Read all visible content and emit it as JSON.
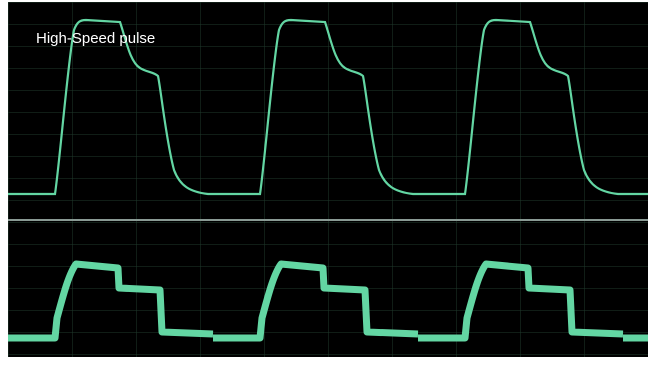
{
  "title": "High-Speed pulse"
}
